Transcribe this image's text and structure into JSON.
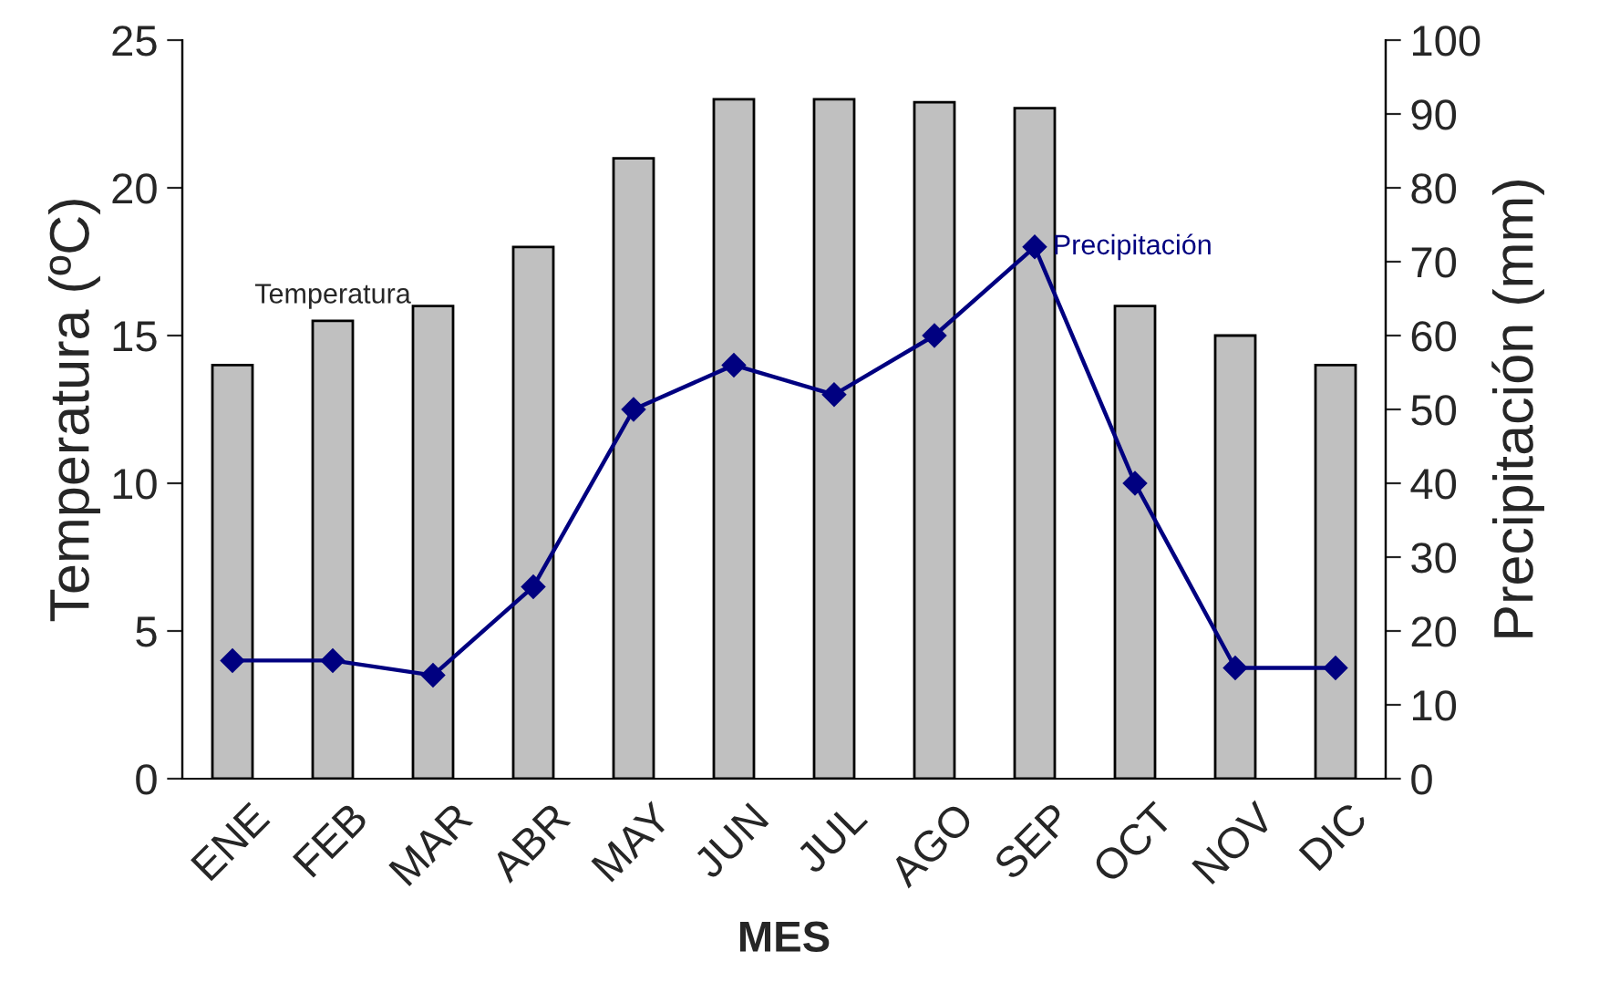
{
  "chart_data": {
    "type": "bar",
    "xlabel": "MES",
    "ylabel": "Temperatura (ºC)",
    "y2label": "Precipitación (mm)",
    "categories": [
      "ENE",
      "FEB",
      "MAR",
      "ABR",
      "MAY",
      "JUN",
      "JUL",
      "AGO",
      "SEP",
      "OCT",
      "NOV",
      "DIC"
    ],
    "series": [
      {
        "name": "Temperatura",
        "color": "#c0c0c0",
        "values": [
          14,
          15.5,
          16,
          18,
          21,
          23,
          23,
          22.9,
          22.7,
          16,
          15,
          14
        ]
      },
      {
        "name": "Precipitación",
        "type": "line",
        "axis": "y2",
        "color": "#000080",
        "marker": "diamond",
        "values": [
          16,
          16,
          14,
          26,
          50,
          56,
          52,
          60,
          72,
          40,
          15,
          15
        ]
      }
    ],
    "ylim": [
      0,
      25
    ],
    "yticks": [
      0,
      5,
      10,
      15,
      20,
      25
    ],
    "y2lim": [
      0,
      100
    ],
    "y2ticks": [
      0,
      10,
      20,
      30,
      40,
      50,
      60,
      70,
      80,
      90,
      100
    ],
    "grid": false,
    "legend": false
  }
}
